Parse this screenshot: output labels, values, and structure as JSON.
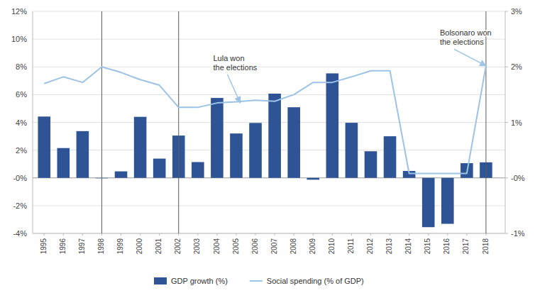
{
  "chart_data": {
    "type": "bar",
    "x": [
      1995,
      1996,
      1997,
      1998,
      1999,
      2000,
      2001,
      2002,
      2003,
      2004,
      2005,
      2006,
      2007,
      2008,
      2009,
      2010,
      2011,
      2012,
      2013,
      2014,
      2015,
      2016,
      2017,
      2018
    ],
    "xlim": [
      1994.4,
      2019.0
    ],
    "xticks": [
      1995,
      1996,
      1997,
      1998,
      1999,
      2000,
      2001,
      2002,
      2003,
      2004,
      2005,
      2006,
      2007,
      2008,
      2009,
      2010,
      2011,
      2012,
      2013,
      2014,
      2015,
      2016,
      2017,
      2018
    ],
    "series": [
      {
        "name": "GDP growth (%)",
        "type": "bar",
        "color": "#2F5496",
        "values": [
          4.42,
          2.15,
          3.37,
          -0.03,
          0.47,
          4.4,
          1.39,
          3.05,
          1.14,
          5.76,
          3.2,
          3.96,
          6.07,
          5.09,
          -0.13,
          7.53,
          3.97,
          1.92,
          3.0,
          0.5,
          -3.55,
          -3.31,
          1.06,
          1.12
        ]
      },
      {
        "name": "Social spending (% of GDP)",
        "type": "line",
        "color": "#9DC3E6",
        "axis": "y2",
        "values": [
          1.7,
          1.82,
          1.72,
          2.0,
          1.9,
          1.77,
          1.67,
          1.27,
          1.27,
          1.35,
          1.37,
          1.4,
          1.38,
          1.5,
          1.72,
          1.72,
          1.82,
          1.93,
          1.93,
          0.08,
          0.08,
          0.08,
          0.08,
          2.02
        ]
      }
    ],
    "ylim": [
      -4,
      12
    ],
    "yticks": [
      {
        "value": -4,
        "label": "-4%"
      },
      {
        "value": -2,
        "label": "-2%"
      },
      {
        "value": 0,
        "label": "-0%"
      },
      {
        "value": 2,
        "label": "2%"
      },
      {
        "value": 4,
        "label": "4%"
      },
      {
        "value": 6,
        "label": "6%"
      },
      {
        "value": 8,
        "label": "8%"
      },
      {
        "value": 10,
        "label": "10%"
      },
      {
        "value": 12,
        "label": "12%"
      }
    ],
    "y2lim": [
      -1,
      3
    ],
    "y2ticks": [
      {
        "value": -1,
        "label": "-1%"
      },
      {
        "value": 0,
        "label": "-0%"
      },
      {
        "value": 1,
        "label": "1%"
      },
      {
        "value": 2,
        "label": "2%"
      },
      {
        "value": 3,
        "label": "3%"
      }
    ],
    "vlines": [
      1998,
      2002,
      2018
    ],
    "annotations": [
      {
        "text": "Lula won\nthe elections",
        "x": 2003.8,
        "y": 9.0,
        "target_x": 2005.2,
        "target_y": 1.35
      },
      {
        "text": "Bolsonaro won\nthe elections",
        "x": 2015.6,
        "y": 10.8,
        "target_x": 2018.0,
        "target_y": 2.02
      }
    ],
    "grid": true,
    "legend": "bottom"
  }
}
